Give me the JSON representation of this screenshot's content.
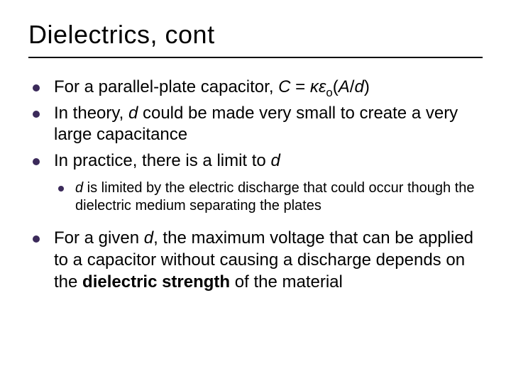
{
  "slide": {
    "title": "Dielectrics, cont",
    "background_color": "#ffffff",
    "text_color": "#000000",
    "bullet_color": "#3b2a5a",
    "title_rule_color": "#000000",
    "title_fontsize_pt": 36,
    "body_fontsize_pt": 24,
    "sub_body_fontsize_pt": 20,
    "bullets": [
      {
        "segments": [
          {
            "text": "For a parallel-plate capacitor, "
          },
          {
            "text": "C",
            "italic": true
          },
          {
            "text": " = "
          },
          {
            "text": "κε",
            "italic": true
          },
          {
            "text": "o",
            "subscript": true
          },
          {
            "text": "("
          },
          {
            "text": "A",
            "italic": true
          },
          {
            "text": "/"
          },
          {
            "text": "d",
            "italic": true
          },
          {
            "text": ")"
          }
        ]
      },
      {
        "segments": [
          {
            "text": "In theory, "
          },
          {
            "text": "d",
            "italic": true
          },
          {
            "text": " could be made very small to create a very large capacitance"
          }
        ]
      },
      {
        "segments": [
          {
            "text": "In practice, there is a limit to "
          },
          {
            "text": "d",
            "italic": true
          }
        ],
        "children": [
          {
            "segments": [
              {
                "text": "d",
                "italic": true
              },
              {
                "text": " is limited by the electric discharge that could occur though the dielectric medium separating the plates"
              }
            ]
          }
        ]
      },
      {
        "gap_top": true,
        "segments": [
          {
            "text": "For a given "
          },
          {
            "text": "d",
            "italic": true
          },
          {
            "text": ", the maximum voltage that can be applied to a capacitor without causing a discharge depends on the "
          },
          {
            "text": "dielectric strength",
            "bold": true
          },
          {
            "text": " of the material"
          }
        ]
      }
    ]
  }
}
